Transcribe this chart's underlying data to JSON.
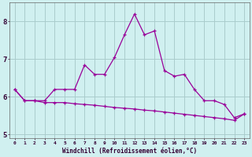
{
  "xlabel": "Windchill (Refroidissement éolien,°C)",
  "x": [
    0,
    1,
    2,
    3,
    4,
    5,
    6,
    7,
    8,
    9,
    10,
    11,
    12,
    13,
    14,
    15,
    16,
    17,
    18,
    19,
    20,
    21,
    22,
    23
  ],
  "line1": [
    6.2,
    5.9,
    5.9,
    5.9,
    6.2,
    6.2,
    6.2,
    6.85,
    6.6,
    6.6,
    7.05,
    7.65,
    8.2,
    7.65,
    7.75,
    6.7,
    6.55,
    6.6,
    6.2,
    5.9,
    5.9,
    5.8,
    5.45,
    5.55
  ],
  "line2": [
    6.2,
    5.9,
    5.9,
    5.85,
    5.85,
    5.85,
    5.82,
    5.8,
    5.78,
    5.75,
    5.72,
    5.7,
    5.68,
    5.65,
    5.63,
    5.6,
    5.57,
    5.54,
    5.51,
    5.48,
    5.45,
    5.42,
    5.38,
    5.55
  ],
  "line_color": "#990099",
  "bg_color": "#d0f0f0",
  "grid_color": "#aacccc",
  "ylim": [
    4.9,
    8.5
  ],
  "yticks": [
    5,
    6,
    7,
    8
  ],
  "xlim": [
    -0.5,
    23.5
  ]
}
